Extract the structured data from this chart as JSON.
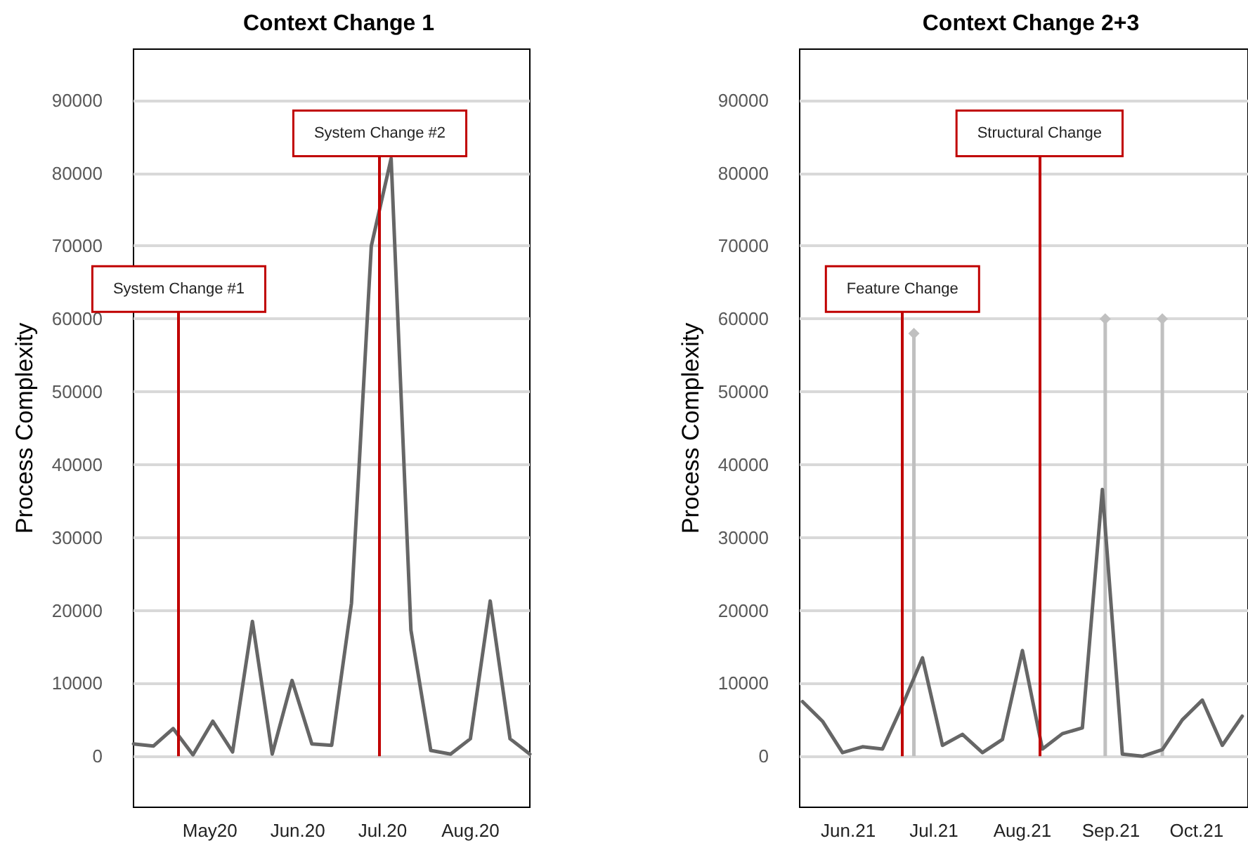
{
  "chart_data": [
    {
      "type": "line",
      "title": "Context Change 1",
      "ylabel": "Process Complexity",
      "x": [
        "2020-04-04",
        "2020-04-11",
        "2020-04-18",
        "2020-04-25",
        "2020-05-02",
        "2020-05-09",
        "2020-05-16",
        "2020-05-23",
        "2020-05-30",
        "2020-06-06",
        "2020-06-13",
        "2020-06-20",
        "2020-06-27",
        "2020-07-04",
        "2020-07-11",
        "2020-07-18",
        "2020-07-25",
        "2020-08-01",
        "2020-08-08",
        "2020-08-15",
        "2020-08-22"
      ],
      "values": [
        1700,
        1400,
        3800,
        200,
        4800,
        600,
        18500,
        300,
        10400,
        1700,
        1500,
        21000,
        70000,
        82000,
        17300,
        800,
        300,
        2400,
        21300,
        2400,
        300
      ],
      "color": "#666666",
      "marker": "none",
      "xlim": [
        "2020-04-04",
        "2020-08-22"
      ],
      "ylim": [
        -7000,
        97000
      ],
      "xticks": [
        {
          "value": "2020-05-01",
          "label": "May20"
        },
        {
          "value": "2020-06-01",
          "label": "Jun.20"
        },
        {
          "value": "2020-07-01",
          "label": "Jul.20"
        },
        {
          "value": "2020-08-01",
          "label": "Aug.20"
        }
      ],
      "yticks": [
        0,
        10000,
        20000,
        30000,
        40000,
        50000,
        60000,
        70000,
        80000,
        90000
      ],
      "grid": "y",
      "ref_lines": [
        {
          "axis": "x",
          "value": "2020-04-20",
          "label": "System Change #1",
          "color": "#c00000"
        },
        {
          "axis": "x",
          "value": "2020-06-30",
          "label": "System Change #2",
          "color": "#c00000"
        }
      ]
    },
    {
      "type": "line",
      "title": "Context Change 2+3",
      "ylabel": "Process Complexity",
      "series": [
        {
          "color": "#666666",
          "x": [
            "2021-05-16",
            "2021-05-23",
            "2021-05-30",
            "2021-06-06",
            "2021-06-13",
            "2021-06-20",
            "2021-06-27",
            "2021-07-04",
            "2021-07-11",
            "2021-07-18",
            "2021-07-25",
            "2021-08-01",
            "2021-08-08",
            "2021-08-15",
            "2021-08-22",
            "2021-08-29",
            "2021-09-05",
            "2021-09-12",
            "2021-09-19",
            "2021-09-26",
            "2021-10-03",
            "2021-10-10",
            "2021-10-17"
          ],
          "values": [
            7500,
            4800,
            500,
            1300,
            1000,
            7000,
            13500,
            1500,
            3000,
            500,
            2300,
            14500,
            1000,
            3100,
            3900,
            36600,
            300,
            0,
            900,
            5000,
            7700,
            1500,
            5500
          ],
          "marker": "none"
        },
        {
          "type": "lollipop",
          "color": "#c0c0c0",
          "x": [
            "2021-06-24",
            "2021-08-30",
            "2021-09-19"
          ],
          "values": [
            58000,
            60000,
            60000
          ],
          "marker": "diamond"
        }
      ],
      "xlim": [
        "2021-05-15",
        "2021-10-19"
      ],
      "ylim": [
        -7000,
        97000
      ],
      "xticks": [
        {
          "value": "2021-06-01",
          "label": "Jun.21"
        },
        {
          "value": "2021-07-01",
          "label": "Jul.21"
        },
        {
          "value": "2021-08-01",
          "label": "Aug.21"
        },
        {
          "value": "2021-09-01",
          "label": "Sep.21"
        },
        {
          "value": "2021-10-01",
          "label": "Oct.21"
        }
      ],
      "yticks": [
        0,
        10000,
        20000,
        30000,
        40000,
        50000,
        60000,
        70000,
        80000,
        90000
      ],
      "grid": "y",
      "ref_lines": [
        {
          "axis": "x",
          "value": "2021-06-20",
          "label": "Feature Change",
          "color": "#c00000"
        },
        {
          "axis": "x",
          "value": "2021-08-07",
          "label": "Structural Change",
          "color": "#c00000"
        }
      ]
    }
  ]
}
